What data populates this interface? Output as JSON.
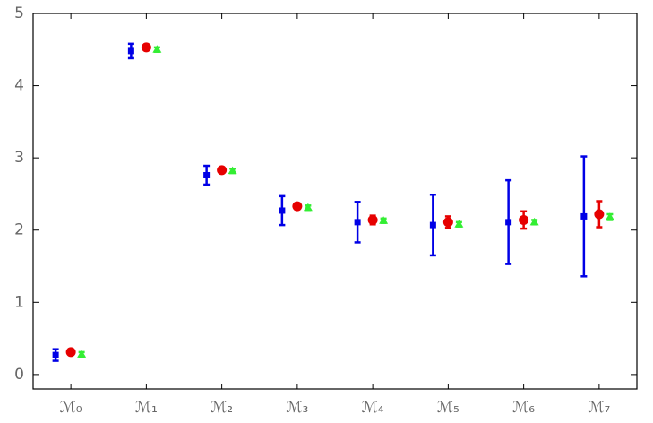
{
  "chart_data": {
    "type": "errorbar",
    "categories": [
      "ℳ₀",
      "ℳ₁",
      "ℳ₂",
      "ℳ₃",
      "ℳ₄",
      "ℳ₅",
      "ℳ₆",
      "ℳ₇"
    ],
    "series": [
      {
        "color": "#0000e6",
        "marker": "square",
        "values": [
          0.27,
          4.48,
          2.76,
          2.27,
          2.11,
          2.07,
          2.11,
          2.19
        ],
        "errors": [
          0.08,
          0.1,
          0.13,
          0.2,
          0.28,
          0.42,
          0.58,
          0.83
        ]
      },
      {
        "color": "#e60000",
        "marker": "circle",
        "values": [
          0.31,
          4.53,
          2.83,
          2.33,
          2.14,
          2.11,
          2.14,
          2.22
        ],
        "errors": [
          0.03,
          0.03,
          0.03,
          0.04,
          0.06,
          0.08,
          0.12,
          0.18
        ]
      },
      {
        "color": "#33ee33",
        "marker": "triangle",
        "values": [
          0.28,
          4.5,
          2.82,
          2.31,
          2.13,
          2.08,
          2.11,
          2.18
        ],
        "errors": [
          0.03,
          0.03,
          0.03,
          0.03,
          0.03,
          0.03,
          0.03,
          0.04
        ]
      }
    ],
    "ylim": [
      -0.2,
      5
    ],
    "yticks": [
      0,
      1,
      2,
      3,
      4,
      5
    ]
  }
}
